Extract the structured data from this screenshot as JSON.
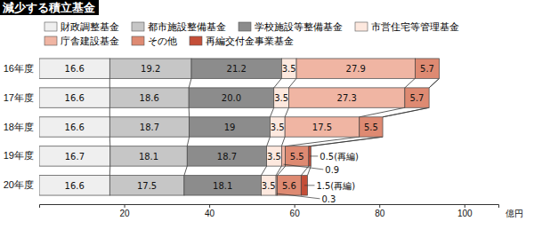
{
  "chart_data": {
    "type": "bar",
    "title": "減少する積立基金",
    "orientation": "horizontal",
    "stacked": true,
    "data_labels": true,
    "categories": [
      "16年度",
      "17年度",
      "18年度",
      "19年度",
      "20年度"
    ],
    "series": [
      {
        "name": "財政調整基金",
        "color": "#efefef",
        "values": [
          16.6,
          16.6,
          16.6,
          16.7,
          16.6
        ]
      },
      {
        "name": "都市施設整備基金",
        "color": "#c6c6c6",
        "values": [
          19.2,
          18.6,
          18.7,
          18.1,
          17.5
        ]
      },
      {
        "name": "学校施設等整備基金",
        "color": "#8c8c8c",
        "values": [
          21.2,
          20.0,
          19.0,
          18.7,
          18.1
        ],
        "value_labels": [
          null,
          "20.0",
          null,
          null,
          null
        ]
      },
      {
        "name": "市営住宅等管理基金",
        "color": "#fde8de",
        "values": [
          3.5,
          3.5,
          3.5,
          3.5,
          3.5
        ]
      },
      {
        "name": "庁舎建設基金",
        "color": "#f0b5a3",
        "values": [
          27.9,
          27.3,
          17.5,
          0.9,
          0.3
        ]
      },
      {
        "name": "その他",
        "color": "#de8a72",
        "values": [
          5.7,
          5.7,
          5.5,
          5.5,
          5.6
        ]
      },
      {
        "name": "再編交付金事業基金",
        "color": "#c44e38",
        "values": [
          null,
          null,
          null,
          0.5,
          1.5
        ],
        "value_labels": [
          null,
          null,
          null,
          "0.5(再編)",
          "1.5(再編)"
        ]
      }
    ],
    "x_label": "億円",
    "xlim": [
      0,
      108
    ],
    "xticks": [
      20,
      40,
      60,
      80,
      100
    ]
  }
}
